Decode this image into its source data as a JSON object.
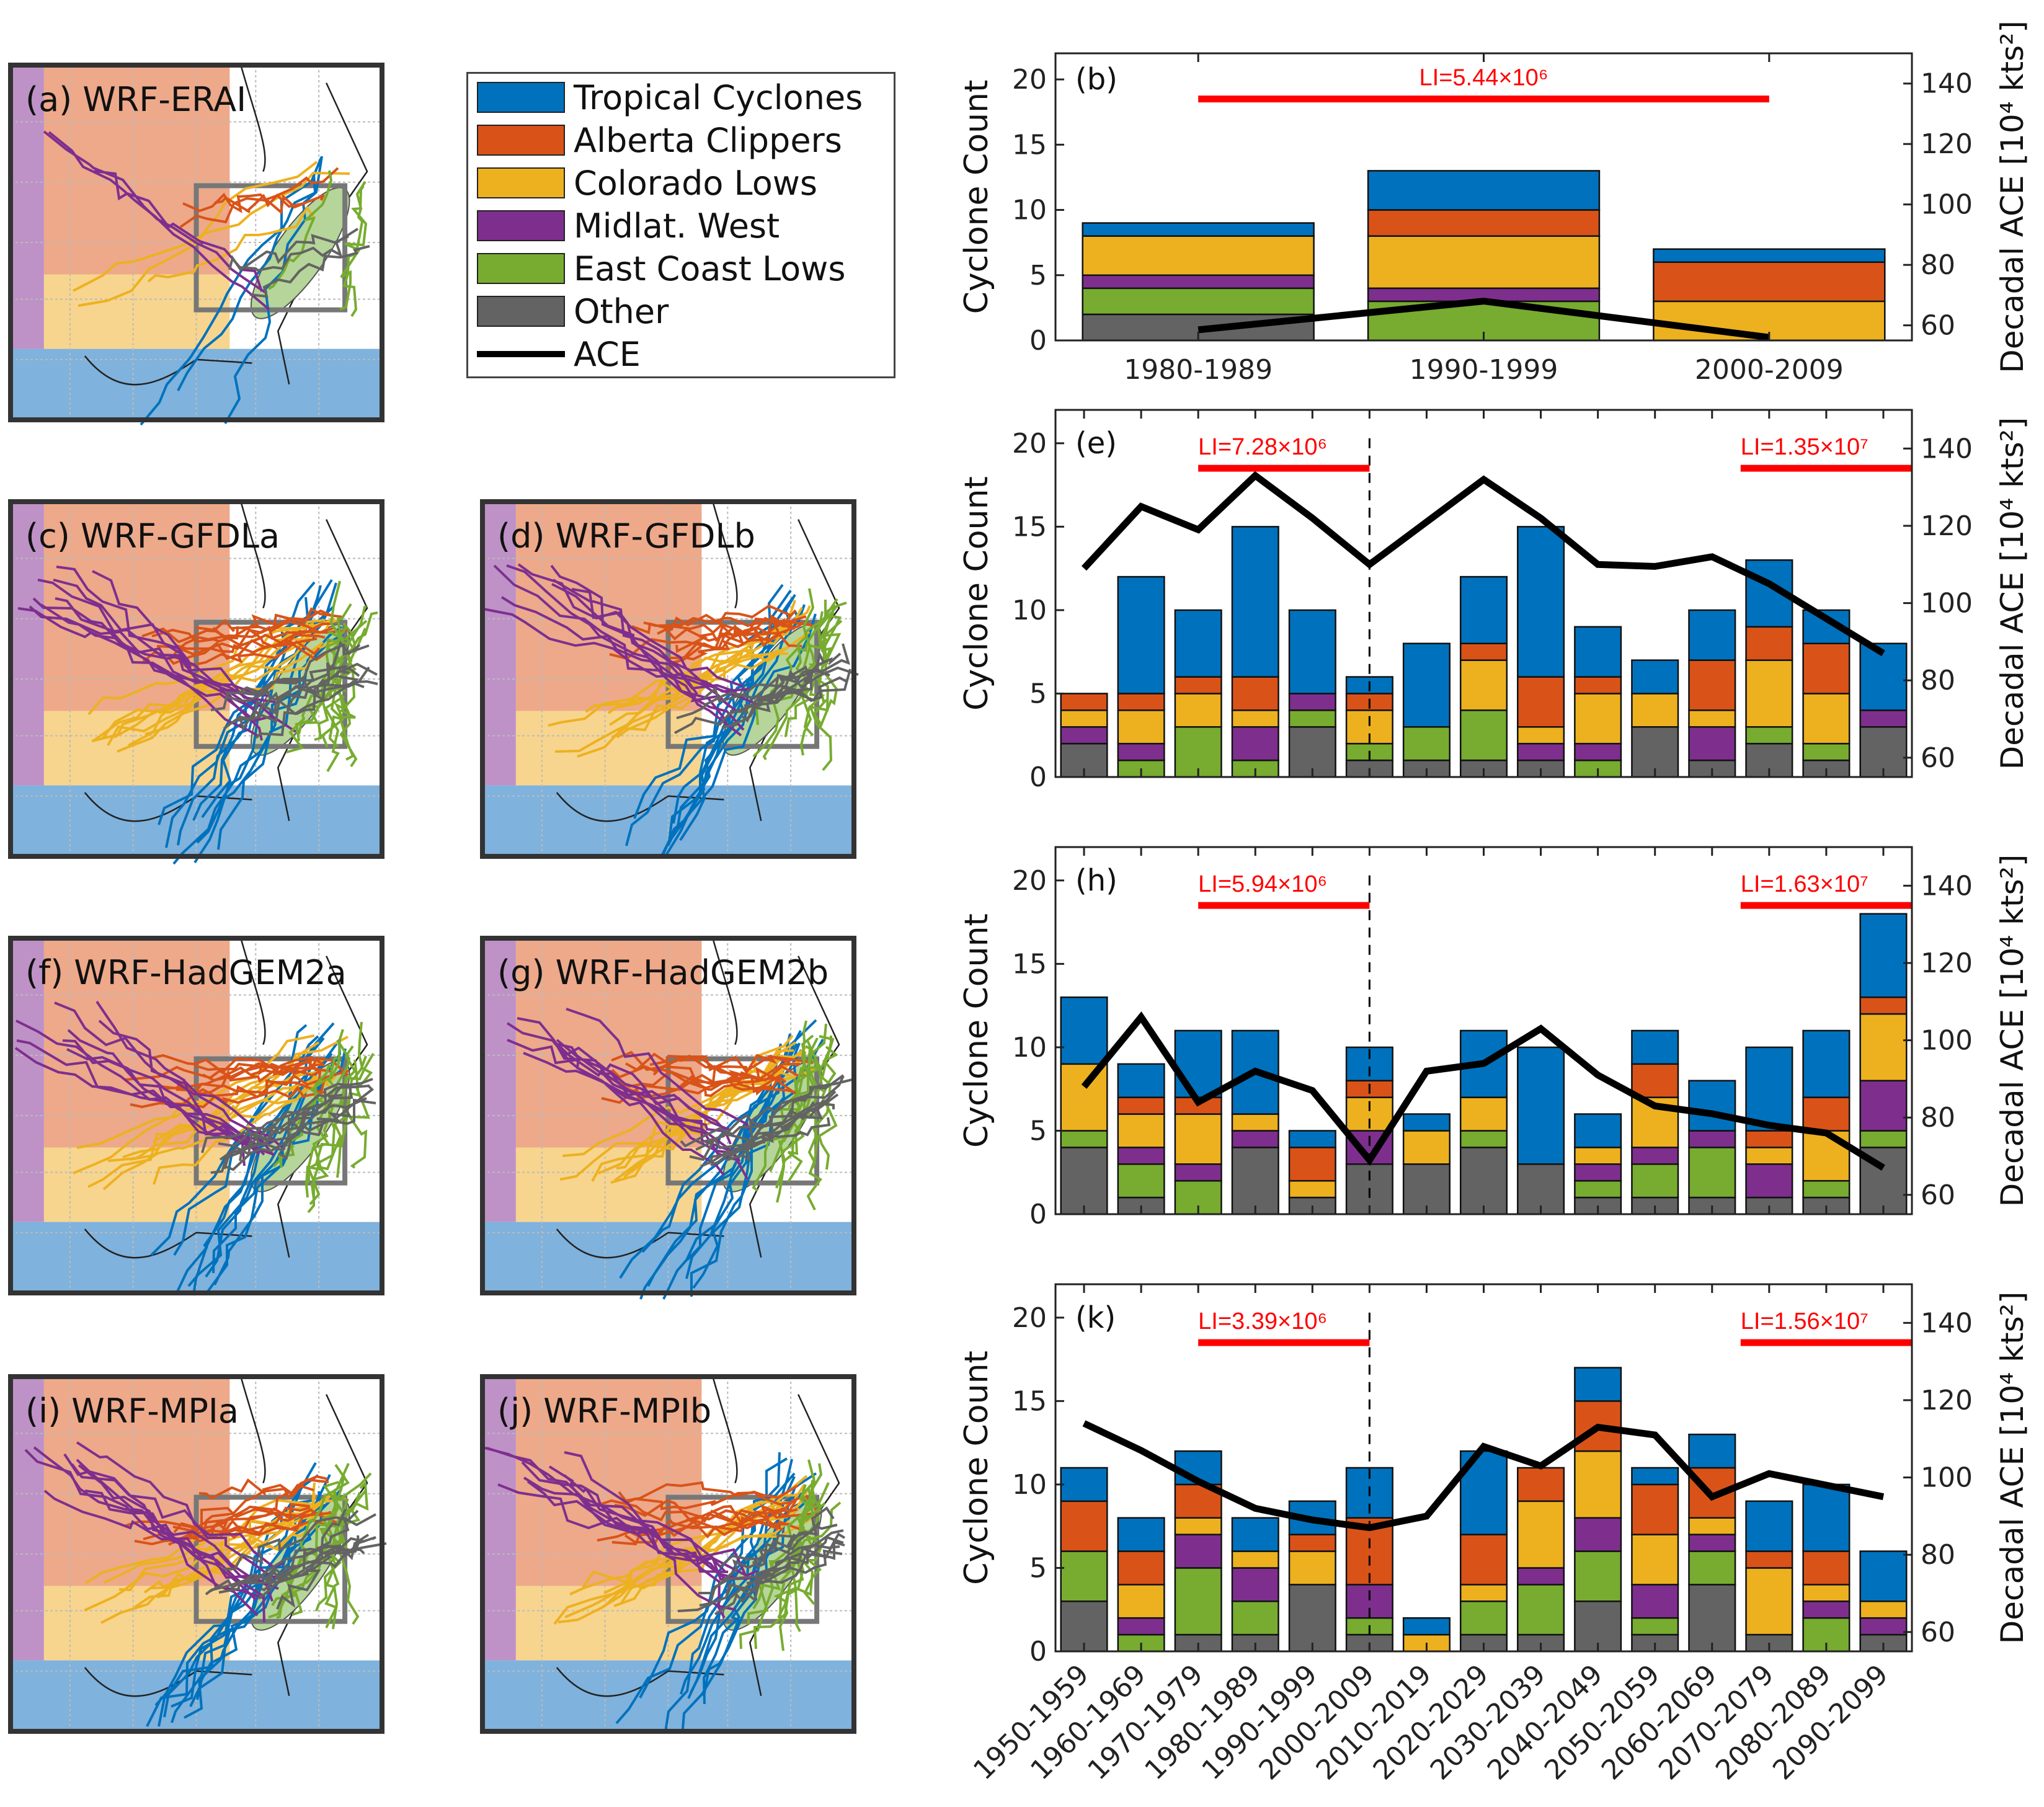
{
  "colors": {
    "tropical_cyclones": "#0072BD",
    "alberta_clippers": "#D95319",
    "colorado_lows": "#EDB120",
    "midlat_west": "#7E2F8E",
    "east_coast_lows": "#77AC30",
    "other": "#636363",
    "ace": "#000000",
    "li": "#FF0000"
  },
  "legend": {
    "items": [
      {
        "label": "Tropical Cyclones",
        "key": "tropical_cyclones"
      },
      {
        "label": "Alberta Clippers",
        "key": "alberta_clippers"
      },
      {
        "label": "Colorado Lows",
        "key": "colorado_lows"
      },
      {
        "label": "Midlat. West",
        "key": "midlat_west"
      },
      {
        "label": "East Coast Lows",
        "key": "east_coast_lows"
      },
      {
        "label": "Other",
        "key": "other"
      },
      {
        "label": "ACE",
        "key": "ace",
        "line": true
      }
    ]
  },
  "maps": [
    {
      "label": "(a) WRF-ERAI"
    },
    {
      "label": "(c) WRF-GFDLa"
    },
    {
      "label": "(d) WRF-GFDLb"
    },
    {
      "label": "(f) WRF-HadGEM2a"
    },
    {
      "label": "(g) WRF-HadGEM2b"
    },
    {
      "label": "(i) WRF-MPIa"
    },
    {
      "label": "(j) WRF-MPIb"
    }
  ],
  "chart_data": [
    {
      "type": "bar",
      "stacked": true,
      "panel": "(b)",
      "ylabel": "Cyclone Count",
      "ylabel_right": "Decadal ACE [10⁴ kts²]",
      "ylim": [
        0,
        22
      ],
      "ylim_right": [
        55,
        150
      ],
      "yticks": [
        "0",
        "5",
        "10",
        "15",
        "20"
      ],
      "yticks_right": [
        "60",
        "80",
        "100",
        "120",
        "140"
      ],
      "show_xticklabels": true,
      "categories": [
        "1980-1989",
        "1990-1999",
        "2000-2009"
      ],
      "series": [
        {
          "name": "Other",
          "key": "other",
          "values": [
            2,
            0,
            0
          ]
        },
        {
          "name": "East Coast Lows",
          "key": "east_coast_lows",
          "values": [
            2,
            3,
            0
          ]
        },
        {
          "name": "Midlat. West",
          "key": "midlat_west",
          "values": [
            1,
            1,
            0
          ]
        },
        {
          "name": "Colorado Lows",
          "key": "colorado_lows",
          "values": [
            3,
            4,
            3
          ]
        },
        {
          "name": "Alberta Clippers",
          "key": "alberta_clippers",
          "values": [
            0,
            2,
            3
          ]
        },
        {
          "name": "Tropical Cyclones",
          "key": "tropical_cyclones",
          "values": [
            1,
            3,
            1
          ]
        }
      ],
      "ace": [
        58.5,
        68,
        56
      ],
      "li": [
        {
          "label": "LI=5.44×10⁶",
          "from": 1,
          "to": 3,
          "count": 18.5
        }
      ],
      "divider": null
    },
    {
      "type": "bar",
      "stacked": true,
      "panel": "(e)",
      "ylabel": "Cyclone Count",
      "ylabel_right": "Decadal ACE [10⁴ kts²]",
      "ylim": [
        0,
        22
      ],
      "ylim_right": [
        55,
        150
      ],
      "yticks": [
        "0",
        "5",
        "10",
        "15",
        "20"
      ],
      "yticks_right": [
        "60",
        "80",
        "100",
        "120",
        "140"
      ],
      "show_xticklabels": false,
      "categories": [
        "1950-1959",
        "1960-1969",
        "1970-1979",
        "1980-1989",
        "1990-1999",
        "2000-2009",
        "2010-2019",
        "2020-2029",
        "2030-2039",
        "2040-2049",
        "2050-2059",
        "2060-2069",
        "2070-2079",
        "2080-2089",
        "2090-2099"
      ],
      "series": [
        {
          "name": "Other",
          "key": "other",
          "values": [
            2,
            0,
            0,
            0,
            3,
            1,
            1,
            1,
            1,
            0,
            3,
            1,
            2,
            1,
            3
          ]
        },
        {
          "name": "East Coast Lows",
          "key": "east_coast_lows",
          "values": [
            0,
            1,
            3,
            1,
            1,
            1,
            2,
            3,
            0,
            1,
            0,
            0,
            1,
            1,
            0
          ]
        },
        {
          "name": "Midlat. West",
          "key": "midlat_west",
          "values": [
            1,
            1,
            0,
            2,
            1,
            0,
            0,
            0,
            1,
            1,
            0,
            2,
            0,
            0,
            1
          ]
        },
        {
          "name": "Colorado Lows",
          "key": "colorado_lows",
          "values": [
            1,
            2,
            2,
            1,
            0,
            2,
            0,
            3,
            1,
            3,
            2,
            1,
            4,
            3,
            0
          ]
        },
        {
          "name": "Alberta Clippers",
          "key": "alberta_clippers",
          "values": [
            1,
            1,
            1,
            2,
            0,
            1,
            0,
            1,
            3,
            1,
            0,
            3,
            2,
            3,
            0
          ]
        },
        {
          "name": "Tropical Cyclones",
          "key": "tropical_cyclones",
          "values": [
            0,
            7,
            4,
            9,
            5,
            1,
            5,
            4,
            9,
            3,
            2,
            3,
            4,
            2,
            4
          ]
        }
      ],
      "ace": [
        109,
        125,
        119,
        133,
        122,
        110,
        121,
        132,
        122,
        110,
        109.5,
        112,
        105,
        96,
        87
      ],
      "li": [
        {
          "label": "LI=7.28×10⁶",
          "from": 3,
          "to": 6,
          "count": 18.5
        },
        {
          "label": "LI=1.35×10⁷",
          "from": 12.5,
          "to": 15.5,
          "count": 18.5
        }
      ],
      "divider": 6
    },
    {
      "type": "bar",
      "stacked": true,
      "panel": "(h)",
      "ylabel": "Cyclone Count",
      "ylabel_right": "Decadal ACE [10⁴ kts²]",
      "ylim": [
        0,
        22
      ],
      "ylim_right": [
        55,
        150
      ],
      "yticks": [
        "0",
        "5",
        "10",
        "15",
        "20"
      ],
      "yticks_right": [
        "60",
        "80",
        "100",
        "120",
        "140"
      ],
      "show_xticklabels": false,
      "categories": [
        "1950-1959",
        "1960-1969",
        "1970-1979",
        "1980-1989",
        "1990-1999",
        "2000-2009",
        "2010-2019",
        "2020-2029",
        "2030-2039",
        "2040-2049",
        "2050-2059",
        "2060-2069",
        "2070-2079",
        "2080-2089",
        "2090-2099"
      ],
      "series": [
        {
          "name": "Other",
          "key": "other",
          "values": [
            4,
            1,
            0,
            4,
            1,
            3,
            3,
            4,
            3,
            1,
            1,
            1,
            1,
            1,
            4
          ]
        },
        {
          "name": "East Coast Lows",
          "key": "east_coast_lows",
          "values": [
            1,
            2,
            2,
            0,
            0,
            0,
            0,
            1,
            0,
            1,
            2,
            3,
            0,
            1,
            1
          ]
        },
        {
          "name": "Midlat. West",
          "key": "midlat_west",
          "values": [
            0,
            1,
            1,
            1,
            0,
            2,
            0,
            0,
            0,
            1,
            1,
            1,
            2,
            0,
            3
          ]
        },
        {
          "name": "Colorado Lows",
          "key": "colorado_lows",
          "values": [
            4,
            2,
            3,
            1,
            1,
            2,
            2,
            2,
            0,
            1,
            3,
            0,
            1,
            3,
            4
          ]
        },
        {
          "name": "Alberta Clippers",
          "key": "alberta_clippers",
          "values": [
            0,
            1,
            1,
            0,
            2,
            1,
            0,
            0,
            0,
            0,
            2,
            0,
            1,
            2,
            1
          ]
        },
        {
          "name": "Tropical Cyclones",
          "key": "tropical_cyclones",
          "values": [
            4,
            2,
            4,
            5,
            1,
            2,
            1,
            4,
            7,
            2,
            2,
            3,
            5,
            4,
            5
          ]
        }
      ],
      "ace": [
        88,
        106,
        84,
        92,
        87,
        69,
        92,
        94,
        103,
        91,
        83,
        81,
        78,
        76,
        67
      ],
      "li": [
        {
          "label": "LI=5.94×10⁶",
          "from": 3,
          "to": 6,
          "count": 18.5
        },
        {
          "label": "LI=1.63×10⁷",
          "from": 12.5,
          "to": 15.5,
          "count": 18.5
        }
      ],
      "divider": 6
    },
    {
      "type": "bar",
      "stacked": true,
      "panel": "(k)",
      "ylabel": "Cyclone Count",
      "ylabel_right": "Decadal ACE [10⁴ kts²]",
      "ylim": [
        0,
        22
      ],
      "ylim_right": [
        55,
        150
      ],
      "yticks": [
        "0",
        "5",
        "10",
        "15",
        "20"
      ],
      "yticks_right": [
        "60",
        "80",
        "100",
        "120",
        "140"
      ],
      "show_xticklabels": true,
      "categories": [
        "1950-1959",
        "1960-1969",
        "1970-1979",
        "1980-1989",
        "1990-1999",
        "2000-2009",
        "2010-2019",
        "2020-2029",
        "2030-2039",
        "2040-2049",
        "2050-2059",
        "2060-2069",
        "2070-2079",
        "2080-2089",
        "2090-2099"
      ],
      "series": [
        {
          "name": "Other",
          "key": "other",
          "values": [
            3,
            0,
            1,
            1,
            4,
            1,
            0,
            1,
            1,
            3,
            1,
            4,
            1,
            0,
            1
          ]
        },
        {
          "name": "East Coast Lows",
          "key": "east_coast_lows",
          "values": [
            3,
            1,
            4,
            2,
            0,
            1,
            0,
            2,
            3,
            3,
            1,
            2,
            0,
            2,
            0
          ]
        },
        {
          "name": "Midlat. West",
          "key": "midlat_west",
          "values": [
            0,
            1,
            2,
            2,
            0,
            2,
            0,
            0,
            1,
            2,
            2,
            1,
            0,
            1,
            1
          ]
        },
        {
          "name": "Colorado Lows",
          "key": "colorado_lows",
          "values": [
            0,
            2,
            1,
            1,
            2,
            0,
            1,
            1,
            4,
            4,
            3,
            1,
            4,
            1,
            1
          ]
        },
        {
          "name": "Alberta Clippers",
          "key": "alberta_clippers",
          "values": [
            3,
            2,
            2,
            0,
            1,
            4,
            0,
            3,
            2,
            3,
            3,
            3,
            1,
            2,
            0
          ]
        },
        {
          "name": "Tropical Cyclones",
          "key": "tropical_cyclones",
          "values": [
            2,
            2,
            2,
            2,
            2,
            3,
            1,
            5,
            0,
            2,
            1,
            2,
            3,
            4,
            3
          ]
        }
      ],
      "ace": [
        114,
        107,
        99,
        92,
        89,
        87,
        90,
        108,
        103,
        113,
        111,
        95,
        101,
        98,
        95
      ],
      "li": [
        {
          "label": "LI=3.39×10⁶",
          "from": 3,
          "to": 6,
          "count": 18.5
        },
        {
          "label": "LI=1.56×10⁷",
          "from": 12.5,
          "to": 15.5,
          "count": 18.5
        }
      ],
      "divider": 6
    }
  ]
}
